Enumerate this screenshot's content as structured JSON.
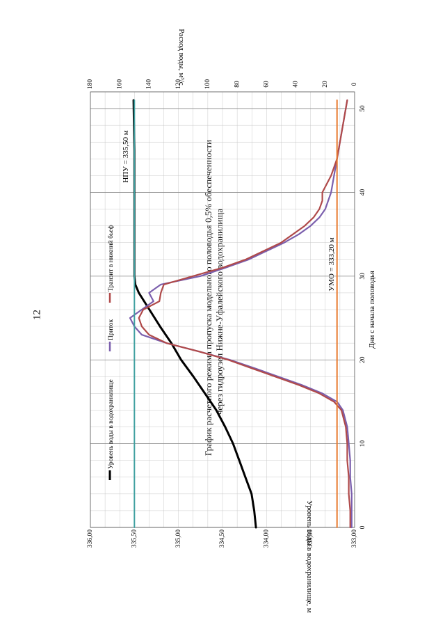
{
  "page": {
    "number": "12"
  },
  "chart_data": {
    "type": "line",
    "title": "График расчетного режима пропуска модельного половодья 0,5% обеспеченности",
    "subtitle": "через гидроузел Нижне-Уфалейского водохранилища",
    "xlabel": "Дни с начала половодья",
    "ylabel_left": "Уровень воды в водохранилище, м",
    "ylabel_right": "Расход воды, м³/с",
    "xlim": [
      0,
      52
    ],
    "ylim_left": [
      333.0,
      336.0
    ],
    "ylim_right": [
      0,
      180
    ],
    "x_ticks": [
      "0",
      "10",
      "20",
      "30",
      "40",
      "50"
    ],
    "y_left_ticks": [
      "333,00",
      "333,50",
      "334,00",
      "334,50",
      "335,00",
      "335,50",
      "336,00"
    ],
    "y_right_ticks": [
      "0",
      "20",
      "40",
      "60",
      "80",
      "100",
      "120",
      "140",
      "160",
      "180"
    ],
    "grid": true,
    "legend_position": "top",
    "series": [
      {
        "name": "Уровень воды в водохранилище",
        "axis": "left",
        "color": "#000000",
        "x": [
          0,
          2,
          4,
          6,
          8,
          10,
          12,
          14,
          16,
          18,
          20,
          22,
          24,
          26,
          28,
          29,
          30,
          35,
          40,
          45,
          51
        ],
        "y": [
          334.12,
          334.14,
          334.17,
          334.24,
          334.31,
          334.38,
          334.47,
          334.57,
          334.7,
          334.83,
          334.97,
          335.08,
          335.21,
          335.33,
          335.45,
          335.49,
          335.5,
          335.5,
          335.5,
          335.5,
          335.51
        ]
      },
      {
        "name": "Приток",
        "axis": "right",
        "color": "#7b5fad",
        "x": [
          0,
          2,
          4,
          6,
          8,
          10,
          12,
          14,
          15,
          16,
          17,
          18,
          19,
          20,
          21,
          22,
          23,
          24,
          25,
          26,
          27,
          28,
          29,
          30,
          31,
          32,
          33,
          34,
          35,
          36,
          37,
          38,
          39,
          40,
          42,
          44,
          46,
          48,
          50,
          51
        ],
        "y": [
          2,
          2,
          2,
          3,
          3,
          4,
          5,
          8,
          12,
          22,
          36,
          52,
          68,
          85,
          106,
          128,
          145,
          150,
          153,
          145,
          137,
          140,
          132,
          105,
          88,
          72,
          60,
          48,
          38,
          30,
          24,
          20,
          18,
          16,
          14,
          12,
          10,
          8,
          6,
          5
        ]
      },
      {
        "name": "Транзит в нижний бьеф",
        "axis": "right",
        "color": "#b04a4a",
        "x": [
          0,
          2,
          4,
          6,
          8,
          10,
          12,
          14,
          15,
          16,
          17,
          18,
          19,
          20,
          21,
          22,
          23,
          24,
          25,
          26,
          27,
          28,
          29,
          30,
          31,
          32,
          33,
          34,
          35,
          36,
          37,
          38,
          39,
          40,
          42,
          44,
          46,
          48,
          50,
          51
        ],
        "y": [
          3,
          3,
          4,
          4,
          5,
          5,
          6,
          9,
          14,
          24,
          38,
          54,
          70,
          86,
          106,
          128,
          140,
          145,
          147,
          144,
          133,
          132,
          130,
          110,
          90,
          74,
          62,
          50,
          42,
          34,
          28,
          24,
          22,
          22,
          16,
          12,
          10,
          8,
          6,
          5
        ]
      },
      {
        "name": "НПУ",
        "axis": "left",
        "color": "#3fa0a0",
        "x": [
          0,
          51
        ],
        "y": [
          335.5,
          335.5
        ]
      },
      {
        "name": "УМО",
        "axis": "left",
        "color": "#e87a30",
        "x": [
          0,
          51
        ],
        "y": [
          333.2,
          333.2
        ]
      }
    ],
    "annotations": {
      "npu": "НПУ = 335,50 м",
      "umo": "УМО = 333,20 м"
    }
  }
}
